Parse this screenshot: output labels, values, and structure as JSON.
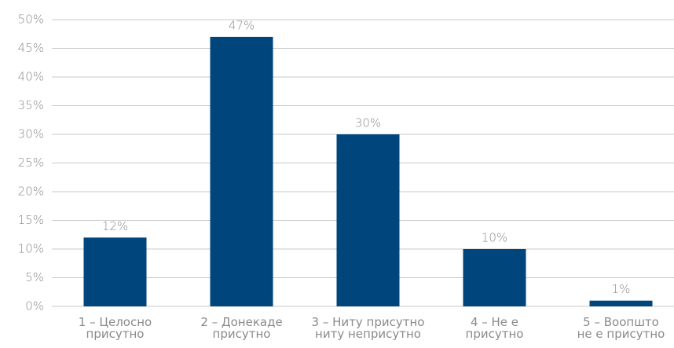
{
  "chart_data": {
    "type": "bar",
    "categories": [
      "1 – Целосно\nприсутно",
      "2 – Донекаде\nприсутно",
      "3 – Ниту присутно\nниту неприсутно",
      "4 – Не е\nприсутно",
      "5 – Воопшто\nне е присутно"
    ],
    "values": [
      12,
      47,
      30,
      10,
      1
    ],
    "value_labels": [
      "12%",
      "47%",
      "30%",
      "10%",
      "1%"
    ],
    "color": "#00457c",
    "ylim": [
      0,
      50
    ],
    "yticks": [
      {
        "value": 0,
        "label": "0%"
      },
      {
        "value": 5,
        "label": "5%"
      },
      {
        "value": 10,
        "label": "10%"
      },
      {
        "value": 15,
        "label": "15%"
      },
      {
        "value": 20,
        "label": "20%"
      },
      {
        "value": 25,
        "label": "25%"
      },
      {
        "value": 30,
        "label": "30%"
      },
      {
        "value": 35,
        "label": "35%"
      },
      {
        "value": 40,
        "label": "40%"
      },
      {
        "value": 45,
        "label": "45%"
      },
      {
        "value": 50,
        "label": "50%"
      }
    ],
    "grid": true
  }
}
